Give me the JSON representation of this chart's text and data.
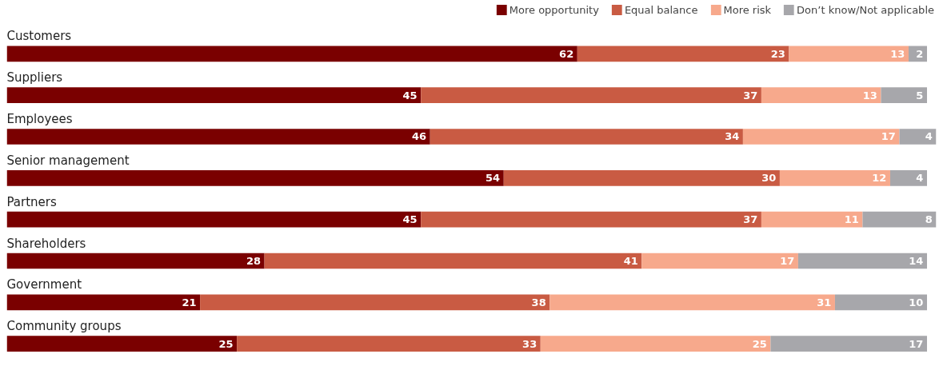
{
  "chart_data": {
    "type": "bar",
    "orientation": "horizontal",
    "stacked": true,
    "categories": [
      "Customers",
      "Suppliers",
      "Employees",
      "Senior management",
      "Partners",
      "Shareholders",
      "Government",
      "Community groups"
    ],
    "series": [
      {
        "name": "More opportunity",
        "color": "#7a0000",
        "values": [
          62,
          45,
          46,
          54,
          45,
          28,
          21,
          25
        ]
      },
      {
        "name": "Equal balance",
        "color": "#c95b43",
        "values": [
          23,
          37,
          34,
          30,
          37,
          41,
          38,
          33
        ]
      },
      {
        "name": "More risk",
        "color": "#f7a98c",
        "values": [
          13,
          13,
          17,
          12,
          11,
          17,
          31,
          25
        ]
      },
      {
        "name": "Don’t know/Not applicable",
        "color": "#a7a7ab",
        "values": [
          2,
          5,
          4,
          4,
          8,
          14,
          10,
          17
        ]
      }
    ],
    "xlim": [
      0,
      101
    ],
    "tick_labels": false,
    "grid": false,
    "legend": "top right",
    "data_labels": true
  }
}
